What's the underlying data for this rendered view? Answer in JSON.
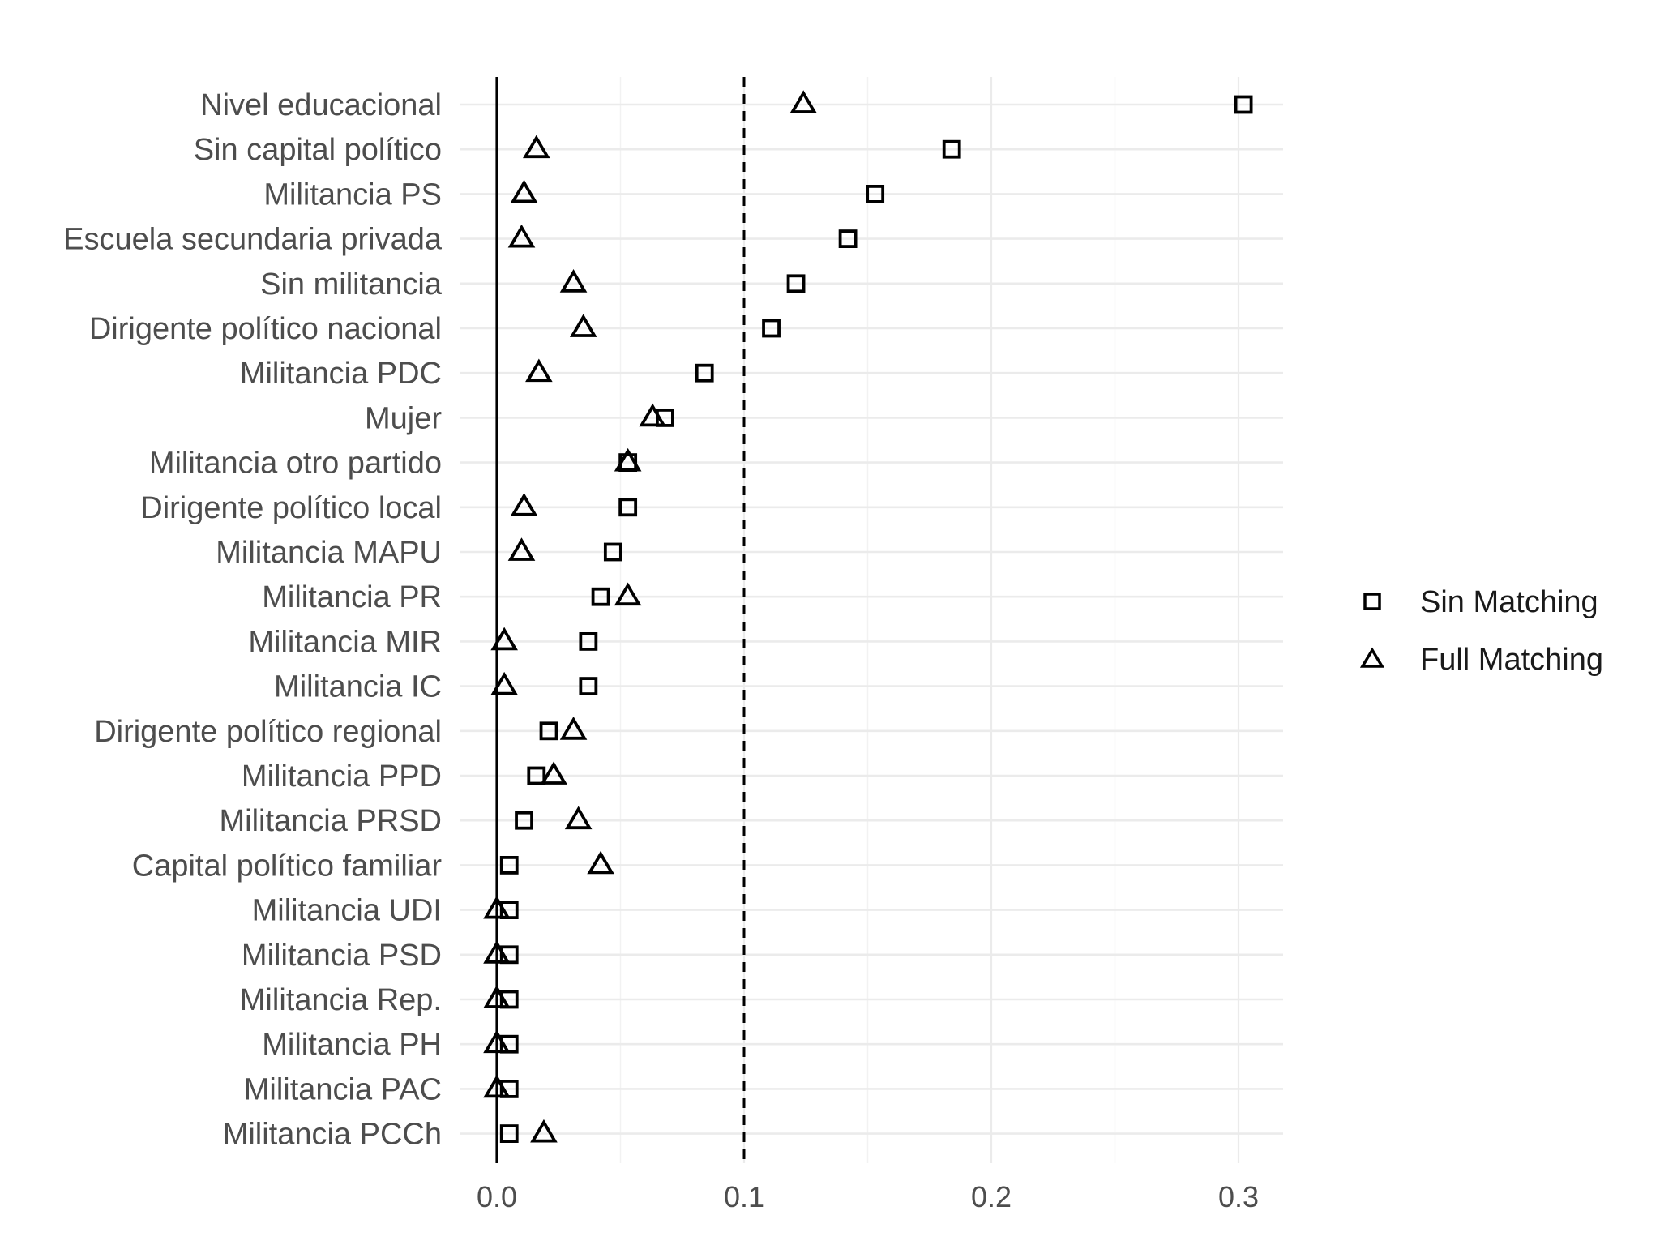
{
  "chart_data": {
    "type": "scatter",
    "title": "",
    "xlabel": "",
    "ylabel": "",
    "xlim": [
      -0.02,
      0.317
    ],
    "x_ticks": [
      "0.0",
      "0.1",
      "0.2",
      "0.3"
    ],
    "x_tick_values": [
      0,
      0.1,
      0.2,
      0.3
    ],
    "reference_lines": [
      {
        "x": 0,
        "style": "solid"
      },
      {
        "x": 0.1,
        "style": "dashed"
      }
    ],
    "grid": true,
    "legend_position": "right",
    "categories": [
      "Nivel educacional",
      "Sin capital político",
      "Militancia PS",
      "Escuela secundaria privada",
      "Sin militancia",
      "Dirigente político nacional",
      "Militancia PDC",
      "Mujer",
      "Militancia otro partido",
      "Dirigente político local",
      "Militancia MAPU",
      "Militancia PR",
      "Militancia MIR",
      "Militancia IC",
      "Dirigente político regional",
      "Militancia PPD",
      "Militancia PRSD",
      "Capital político familiar",
      "Militancia UDI",
      "Militancia PSD",
      "Militancia Rep.",
      "Militancia PH",
      "Militancia PAC",
      "Militancia PCCh"
    ],
    "series": [
      {
        "name": "Sin Matching",
        "marker": "square",
        "values": [
          0.302,
          0.184,
          0.153,
          0.142,
          0.121,
          0.111,
          0.084,
          0.068,
          0.053,
          0.053,
          0.047,
          0.042,
          0.037,
          0.037,
          0.021,
          0.016,
          0.011,
          0.005,
          0.005,
          0.005,
          0.005,
          0.005,
          0.005,
          0.005
        ]
      },
      {
        "name": "Full Matching",
        "marker": "triangle",
        "values": [
          0.124,
          0.016,
          0.011,
          0.01,
          0.031,
          0.035,
          0.017,
          0.063,
          0.053,
          0.011,
          0.01,
          0.053,
          0.003,
          0.003,
          0.031,
          0.023,
          0.033,
          0.042,
          0.0,
          0.0,
          0.0,
          0.0,
          0.0,
          0.019
        ]
      }
    ]
  }
}
